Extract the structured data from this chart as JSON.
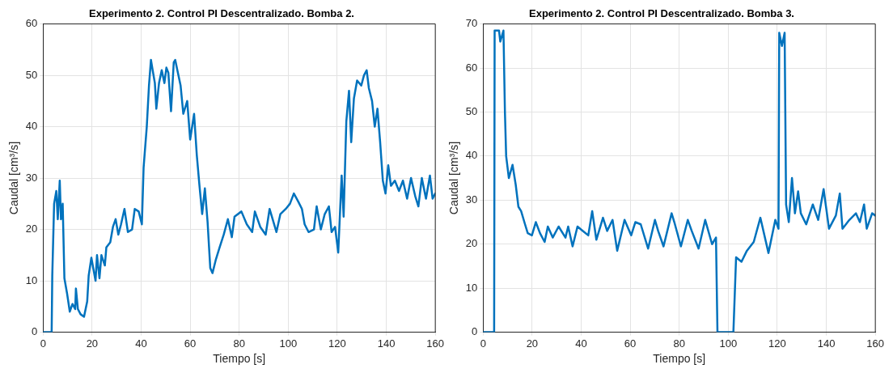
{
  "chart_data": [
    {
      "type": "line",
      "title": "Experimento 2. Control PI Descentralizado. Bomba 2.",
      "xlabel": "Tiempo [s]",
      "ylabel": "Caudal [cm³/s]",
      "xlim": [
        0,
        160
      ],
      "xticks": [
        0,
        20,
        40,
        60,
        80,
        100,
        120,
        140,
        160
      ],
      "ylim": [
        0,
        60
      ],
      "yticks": [
        0,
        10,
        20,
        30,
        40,
        50,
        60
      ],
      "grid": true,
      "line_style": "solid",
      "marker": "none",
      "series": [
        {
          "color": "#0072bd",
          "x": [
            0,
            3.5,
            3.75,
            4.5,
            5.4,
            6,
            6.8,
            7.3,
            8,
            8.7,
            9.8,
            10.9,
            12,
            13.1,
            13.4,
            14.2,
            15.3,
            16.7,
            18,
            18.6,
            19.7,
            21.4,
            22,
            23,
            23.8,
            25.2,
            25.8,
            27.4,
            28.5,
            29.6,
            30.7,
            31.8,
            33.2,
            34.6,
            36.3,
            37.4,
            39,
            40.3,
            41,
            42.3,
            43.2,
            44,
            44.7,
            45.6,
            46.2,
            47.3,
            48.4,
            49.5,
            50.3,
            51.1,
            52.2,
            53.3,
            53.9,
            55,
            56.1,
            57.2,
            58.8,
            60,
            61.6,
            62.7,
            63.8,
            64.9,
            66,
            67.1,
            68.2,
            69.1,
            70.4,
            72,
            73.7,
            75.4,
            77,
            78.1,
            80.9,
            83.1,
            85.3,
            86.4,
            88.6,
            90.8,
            92.4,
            95.2,
            96.8,
            99,
            100.7,
            102.3,
            104,
            105.6,
            106.7,
            108.3,
            110.5,
            111.6,
            113.3,
            114.9,
            116.6,
            117.7,
            119.1,
            120.4,
            121.8,
            122.6,
            123.7,
            124.8,
            125.7,
            126.8,
            128.1,
            129.8,
            130.9,
            132,
            132.9,
            134.2,
            135.3,
            136.4,
            137.5,
            138.6,
            139.7,
            140.8,
            141.9,
            143.5,
            145.2,
            146.8,
            148.5,
            150.1,
            151.8,
            153.1,
            154.5,
            156.2,
            157.8,
            158.9,
            160
          ],
          "values": [
            0,
            0,
            11,
            25,
            27.5,
            22,
            29.5,
            22,
            25,
            10.5,
            7.5,
            4,
            5.5,
            4.5,
            8.5,
            4.5,
            3.5,
            3,
            6,
            11,
            14.5,
            10,
            15,
            10.5,
            15,
            13,
            16.5,
            17.5,
            20.5,
            22,
            19,
            21,
            24,
            19.5,
            20,
            24,
            23.5,
            21,
            32,
            40,
            48,
            53,
            51,
            48.5,
            43.5,
            48.5,
            51,
            48.5,
            51.5,
            50.5,
            43,
            52.5,
            53,
            50.5,
            48,
            42.5,
            45,
            37.5,
            42.5,
            34.5,
            28.5,
            23,
            28,
            21.5,
            12.5,
            11.5,
            14,
            16.5,
            19,
            22,
            18.5,
            22.5,
            23.5,
            21,
            19.5,
            23.5,
            20.5,
            19,
            24,
            19.5,
            23,
            24,
            25,
            27,
            25.5,
            24,
            21,
            19.5,
            20,
            24.5,
            20,
            23,
            24.5,
            19.5,
            20.5,
            15.5,
            30.5,
            22.5,
            41,
            47,
            37,
            45.5,
            49,
            48,
            50,
            51,
            47.5,
            45,
            40,
            43.5,
            37,
            29.5,
            27,
            32.5,
            28.5,
            29.5,
            27.5,
            29.5,
            26,
            30,
            26.5,
            24.5,
            30,
            26,
            30.5,
            26,
            27
          ]
        }
      ]
    },
    {
      "type": "line",
      "title": "Experimento 2. Control PI Descentralizado. Bomba 3.",
      "xlabel": "Tiempo [s]",
      "ylabel": "Caudal [cm³/s]",
      "xlim": [
        0,
        160
      ],
      "xticks": [
        0,
        20,
        40,
        60,
        80,
        100,
        120,
        140,
        160
      ],
      "ylim": [
        0,
        70
      ],
      "yticks": [
        0,
        10,
        20,
        30,
        40,
        50,
        60,
        70
      ],
      "grid": true,
      "line_style": "solid",
      "marker": "none",
      "series": [
        {
          "color": "#0072bd",
          "x": [
            0,
            4.5,
            4.7,
            6.5,
            7,
            8.3,
            8.9,
            9.4,
            10.5,
            12,
            13.3,
            14.4,
            15.5,
            17.1,
            18.2,
            19.9,
            21.5,
            23.2,
            25.1,
            26.4,
            28.4,
            30.8,
            33.6,
            34.7,
            36.5,
            38.5,
            40.7,
            42.9,
            44.5,
            46.2,
            48.9,
            50.6,
            52.8,
            54.7,
            57.7,
            60.4,
            62.1,
            64.3,
            67.3,
            70.1,
            71.4,
            73.6,
            76.9,
            78,
            80.7,
            83.5,
            85.1,
            87.9,
            90.6,
            93.4,
            95,
            95.6,
            102.1,
            103.2,
            105.4,
            107.6,
            110.4,
            113.1,
            116.4,
            119.2,
            120.5,
            120.8,
            121.9,
            123,
            123.6,
            124.7,
            126,
            127.2,
            128.5,
            129.6,
            131.8,
            134.5,
            136.7,
            138.9,
            141.1,
            143.9,
            145.5,
            146.6,
            149.4,
            152.1,
            153.7,
            155.4,
            156.5,
            158.7,
            160
          ],
          "values": [
            0,
            0,
            68.5,
            68.5,
            66,
            68.5,
            50,
            40,
            35,
            38,
            33.5,
            28.5,
            27.5,
            24.5,
            22.5,
            22,
            25,
            22.5,
            20.5,
            24,
            21.5,
            24,
            21.5,
            24,
            19.5,
            24,
            23,
            22,
            27.5,
            21,
            26,
            23,
            25.5,
            18.5,
            25.5,
            22,
            25,
            24.5,
            19,
            25.5,
            23,
            19.5,
            27,
            25,
            19.5,
            25.5,
            23,
            19,
            25.5,
            20,
            21.5,
            0,
            0,
            17,
            16,
            18.5,
            20.5,
            26,
            18,
            25.5,
            23.5,
            68,
            65,
            68,
            29,
            25,
            35,
            27,
            32,
            27,
            24.5,
            29,
            25.5,
            32.5,
            23.5,
            26.5,
            31.5,
            23.5,
            25.5,
            27,
            25,
            29,
            23.5,
            27,
            26.5
          ]
        }
      ]
    }
  ]
}
